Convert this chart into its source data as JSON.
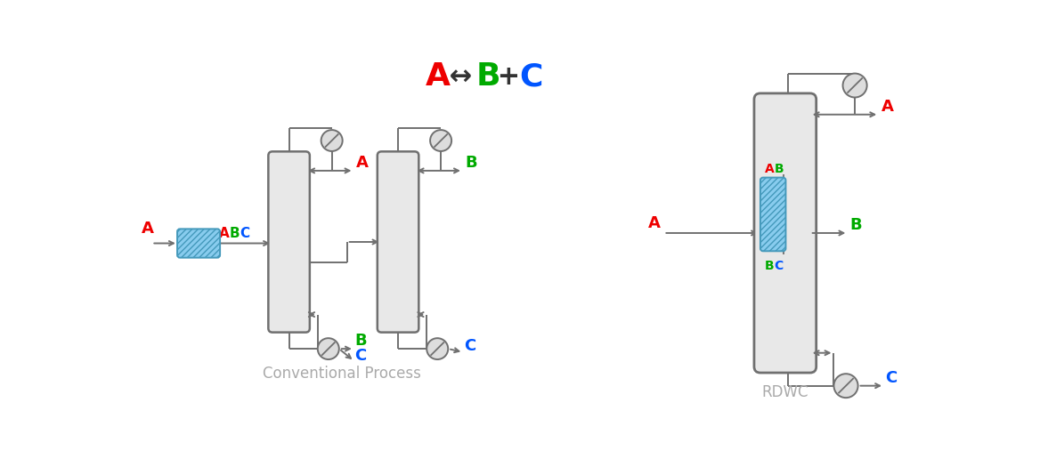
{
  "title_parts": [
    {
      "text": "A",
      "color": "#EE0000"
    },
    {
      "text": " ↔ ",
      "color": "#333333"
    },
    {
      "text": "B",
      "color": "#00AA00"
    },
    {
      "text": " + ",
      "color": "#333333"
    },
    {
      "text": "C",
      "color": "#0055FF"
    }
  ],
  "label_conventional": "Conventional Process",
  "label_rdwc": "RDWC",
  "colors": {
    "column_fill": "#E8E8E8",
    "column_edge": "#707070",
    "line": "#707070",
    "A": "#EE0000",
    "B": "#00AA00",
    "C": "#0055FF",
    "label_gray": "#AAAAAA",
    "reactor_fill": "#88CCEE",
    "reactor_edge": "#4499BB"
  },
  "figsize": [
    11.77,
    5.34
  ],
  "dpi": 100
}
